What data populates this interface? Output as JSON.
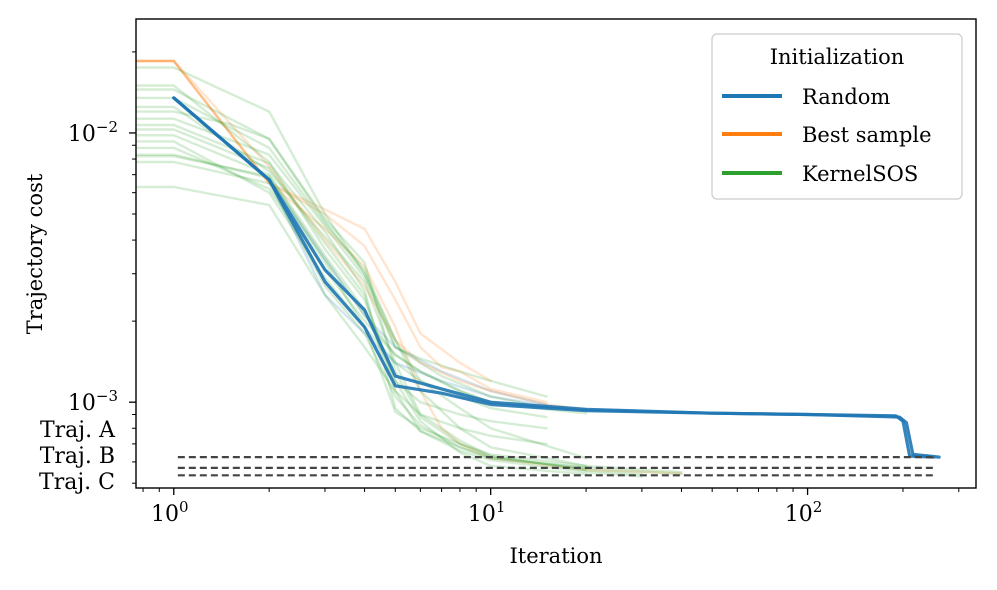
{
  "chart_data": {
    "type": "line",
    "x_scale": "log",
    "y_scale": "log",
    "xlim": [
      0.76,
      340
    ],
    "ylim": [
      0.00048,
      0.0265
    ],
    "xlabel": "Iteration",
    "ylabel": "Trajectory cost",
    "x_ticks": [
      {
        "value": 1,
        "base": "10",
        "exp": "0"
      },
      {
        "value": 10,
        "base": "10",
        "exp": "1"
      },
      {
        "value": 100,
        "base": "10",
        "exp": "2"
      }
    ],
    "y_ticks": [
      {
        "value": 0.01,
        "base": "10",
        "exp": "−2"
      },
      {
        "value": 0.001,
        "base": "10",
        "exp": "−3"
      }
    ],
    "legend": {
      "title": "Initialization",
      "placement": "top-right",
      "entries": [
        {
          "label": "Random",
          "color": "#1f77b4"
        },
        {
          "label": "Best sample",
          "color": "#ff7f0e"
        },
        {
          "label": "KernelSOS",
          "color": "#2ca02c"
        }
      ]
    },
    "reference_lines": [
      {
        "label": "Traj. A",
        "y": 0.000625
      },
      {
        "label": "Traj. B",
        "y": 0.00057
      },
      {
        "label": "Traj. C",
        "y": 0.000535
      }
    ],
    "reference_color": "#444444",
    "series": [
      {
        "name": "Random",
        "color": "#1f77b4",
        "style": "bold",
        "x": [
          1,
          2,
          3,
          4,
          5,
          7,
          10,
          20,
          50,
          100,
          190,
          200,
          210,
          250
        ],
        "y": [
          0.0135,
          0.0067,
          0.0028,
          0.0019,
          0.00115,
          0.00108,
          0.00098,
          0.00093,
          0.00091,
          0.0009,
          0.00089,
          0.00085,
          0.00063,
          0.000625
        ]
      },
      {
        "name": "Random",
        "color": "#1f77b4",
        "style": "bold",
        "x": [
          1,
          2,
          3,
          4,
          5,
          7,
          10,
          20,
          50,
          100,
          195,
          205,
          215,
          260
        ],
        "y": [
          0.0135,
          0.0067,
          0.0031,
          0.0022,
          0.00125,
          0.00112,
          0.001,
          0.00094,
          0.00091,
          0.0009,
          0.00088,
          0.00084,
          0.00064,
          0.000625
        ]
      },
      {
        "name": "Random",
        "color": "#1f77b4",
        "style": "faint",
        "x": [
          1,
          2,
          3,
          4,
          5,
          7,
          10,
          15,
          20
        ],
        "y": [
          0.0135,
          0.0067,
          0.0025,
          0.0018,
          0.0014,
          0.0012,
          0.00105,
          0.00097,
          0.00094
        ]
      },
      {
        "name": "Random",
        "color": "#1f77b4",
        "style": "faint",
        "x": [
          1,
          2,
          3,
          4,
          5,
          7,
          10,
          15
        ],
        "y": [
          0.0135,
          0.0067,
          0.0034,
          0.0021,
          0.0016,
          0.0013,
          0.0011,
          0.00098
        ]
      },
      {
        "name": "Best sample",
        "color": "#ff7f0e",
        "style": "faint",
        "x": [
          0.76,
          1,
          2,
          3,
          4,
          5,
          6,
          8,
          10,
          15,
          20
        ],
        "y": [
          0.0185,
          0.0185,
          0.0075,
          0.004,
          0.0027,
          0.0017,
          0.0014,
          0.0012,
          0.0011,
          0.00098,
          0.00094
        ]
      },
      {
        "name": "Best sample",
        "color": "#ff7f0e",
        "style": "faint",
        "x": [
          0.76,
          1,
          2,
          3,
          4,
          5,
          6,
          8,
          10
        ],
        "y": [
          0.0185,
          0.0185,
          0.0065,
          0.0052,
          0.0044,
          0.0028,
          0.0018,
          0.0014,
          0.0012
        ]
      },
      {
        "name": "Best sample",
        "color": "#ff7f0e",
        "style": "faint",
        "x": [
          0.76,
          1,
          2,
          3,
          4,
          5,
          6,
          7,
          8,
          10,
          15
        ],
        "y": [
          0.0185,
          0.0185,
          0.0065,
          0.005,
          0.0038,
          0.0024,
          0.0016,
          0.00135,
          0.0013,
          0.00112,
          0.001
        ]
      },
      {
        "name": "Best sample",
        "color": "#ff7f0e",
        "style": "faint",
        "x": [
          0.76,
          1,
          2,
          3,
          4,
          5,
          6,
          7,
          8,
          10,
          20,
          40
        ],
        "y": [
          0.0185,
          0.0185,
          0.0065,
          0.0044,
          0.0032,
          0.0019,
          0.0011,
          0.0008,
          0.0007,
          0.00062,
          0.00056,
          0.000545
        ]
      },
      {
        "name": "KernelSOS",
        "color": "#2ca02c",
        "style": "faint",
        "x": [
          0.76,
          1,
          2,
          3,
          4,
          5,
          6,
          8,
          10,
          15,
          20
        ],
        "y": [
          0.0082,
          0.0082,
          0.0069,
          0.0034,
          0.0021,
          0.0015,
          0.0013,
          0.0011,
          0.001,
          0.00094,
          0.00091
        ]
      },
      {
        "name": "KernelSOS",
        "color": "#2ca02c",
        "style": "faint",
        "x": [
          0.76,
          1,
          2,
          3,
          4,
          5,
          6,
          8,
          10,
          15
        ],
        "y": [
          0.0063,
          0.0063,
          0.0054,
          0.0025,
          0.0016,
          0.0011,
          0.0009,
          0.0008,
          0.00075,
          0.0007
        ]
      },
      {
        "name": "KernelSOS",
        "color": "#2ca02c",
        "style": "faint",
        "x": [
          0.76,
          1,
          2,
          3,
          4,
          5,
          6,
          8,
          10,
          20,
          40
        ],
        "y": [
          0.0135,
          0.0135,
          0.0088,
          0.0046,
          0.0031,
          0.0017,
          0.0011,
          0.0008,
          0.00068,
          0.00058,
          0.00055
        ]
      },
      {
        "name": "KernelSOS",
        "color": "#2ca02c",
        "style": "faint",
        "x": [
          0.76,
          1,
          1.5,
          2,
          3,
          4,
          5,
          6,
          8,
          10,
          15
        ],
        "y": [
          0.012,
          0.012,
          0.0108,
          0.0095,
          0.0047,
          0.003,
          0.0016,
          0.00145,
          0.0013,
          0.0012,
          0.00105
        ]
      },
      {
        "name": "KernelSOS",
        "color": "#2ca02c",
        "style": "faint",
        "x": [
          0.76,
          1,
          2,
          3,
          4,
          5,
          6,
          8,
          10,
          20
        ],
        "y": [
          0.015,
          0.015,
          0.0078,
          0.0037,
          0.0024,
          0.0012,
          0.00085,
          0.00065,
          0.00058,
          0.00054
        ]
      },
      {
        "name": "KernelSOS",
        "color": "#2ca02c",
        "style": "faint",
        "x": [
          0.76,
          1,
          2,
          3,
          4,
          5,
          6,
          8,
          10,
          20
        ],
        "y": [
          0.0175,
          0.0175,
          0.012,
          0.005,
          0.003,
          0.0017,
          0.0012,
          0.00095,
          0.0008,
          0.00062
        ]
      },
      {
        "name": "KernelSOS",
        "color": "#2ca02c",
        "style": "faint",
        "x": [
          0.76,
          1,
          2,
          3,
          4,
          5,
          6,
          8,
          10,
          20,
          40
        ],
        "y": [
          0.0107,
          0.0107,
          0.0077,
          0.0043,
          0.0026,
          0.00095,
          0.00078,
          0.00068,
          0.00062,
          0.00057,
          0.00054
        ]
      },
      {
        "name": "KernelSOS",
        "color": "#2ca02c",
        "style": "faint",
        "x": [
          0.76,
          1,
          2,
          3,
          4,
          5,
          6,
          8,
          10,
          15
        ],
        "y": [
          0.0093,
          0.0093,
          0.006,
          0.0029,
          0.0019,
          0.0014,
          0.0012,
          0.00105,
          0.00095,
          0.00088
        ]
      },
      {
        "name": "KernelSOS",
        "color": "#2ca02c",
        "style": "faint",
        "x": [
          0.76,
          1,
          2,
          3,
          4,
          5,
          6,
          8,
          10,
          20,
          30
        ],
        "y": [
          0.0125,
          0.0125,
          0.0072,
          0.0041,
          0.0028,
          0.0014,
          0.0009,
          0.00072,
          0.00063,
          0.00056,
          0.00054
        ]
      },
      {
        "name": "KernelSOS",
        "color": "#2ca02c",
        "style": "faint",
        "x": [
          0.76,
          1,
          2,
          3,
          4,
          5,
          6,
          8,
          10,
          20
        ],
        "y": [
          0.0078,
          0.0078,
          0.0065,
          0.0027,
          0.0018,
          0.00105,
          0.00082,
          0.00068,
          0.00062,
          0.00057
        ]
      },
      {
        "name": "KernelSOS",
        "color": "#2ca02c",
        "style": "faint",
        "x": [
          0.76,
          1,
          2,
          3,
          4,
          5,
          7,
          10,
          15
        ],
        "y": [
          0.0113,
          0.0113,
          0.0083,
          0.0045,
          0.0029,
          0.0016,
          0.00125,
          0.00105,
          0.00095
        ]
      },
      {
        "name": "KernelSOS",
        "color": "#2ca02c",
        "style": "faint",
        "x": [
          0.76,
          1,
          2,
          3,
          4,
          5,
          6,
          8,
          10,
          20
        ],
        "y": [
          0.0145,
          0.0145,
          0.0095,
          0.0048,
          0.0033,
          0.0013,
          0.00088,
          0.0007,
          0.00063,
          0.00056
        ]
      },
      {
        "name": "KernelSOS",
        "color": "#2ca02c",
        "style": "faint",
        "x": [
          0.76,
          1,
          2,
          3,
          4,
          5,
          6,
          8,
          10
        ],
        "y": [
          0.0088,
          0.0088,
          0.0062,
          0.0031,
          0.002,
          0.0015,
          0.0013,
          0.0011,
          0.001
        ]
      },
      {
        "name": "KernelSOS",
        "color": "#2ca02c",
        "style": "faint",
        "x": [
          0.76,
          1,
          2,
          3,
          4,
          5,
          6,
          8,
          10,
          20,
          30
        ],
        "y": [
          0.0103,
          0.0103,
          0.0074,
          0.0039,
          0.0025,
          0.0011,
          0.00078,
          0.00066,
          0.00061,
          0.00055,
          0.00053
        ]
      },
      {
        "name": "KernelSOS",
        "color": "#2ca02c",
        "style": "faint",
        "x": [
          0.76,
          1,
          2,
          3,
          4,
          5,
          6,
          8,
          10,
          15
        ],
        "y": [
          0.0098,
          0.0098,
          0.007,
          0.0035,
          0.0022,
          0.0012,
          0.001,
          0.0009,
          0.00085,
          0.0008
        ]
      },
      {
        "name": "KernelSOS",
        "color": "#2ca02c",
        "style": "faint",
        "x": [
          0.76,
          1,
          2,
          3,
          4,
          5,
          6,
          8,
          10,
          20
        ],
        "y": [
          0.0083,
          0.0083,
          0.0068,
          0.0033,
          0.0019,
          0.00092,
          0.0008,
          0.0007,
          0.00064,
          0.00058
        ]
      }
    ]
  }
}
